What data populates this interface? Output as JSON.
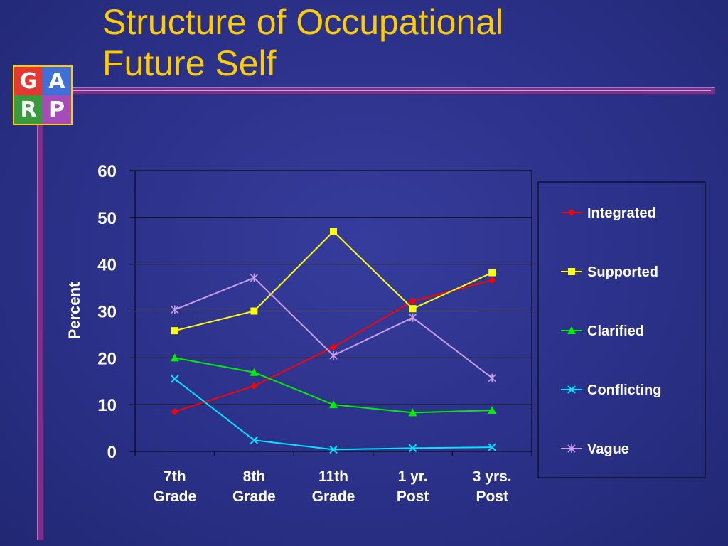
{
  "slide": {
    "title_line1": "Structure of Occupational",
    "title_line2": "Future Self"
  },
  "logo": {
    "letters": [
      "G",
      "A",
      "R",
      "P"
    ],
    "colors": [
      "#e23a33",
      "#3f6fd8",
      "#3a9a3e",
      "#a64bb8"
    ]
  },
  "chart_data": {
    "type": "line",
    "categories": [
      [
        "7th",
        "Grade"
      ],
      [
        "8th",
        "Grade"
      ],
      [
        "11th",
        "Grade"
      ],
      [
        "1 yr.",
        "Post"
      ],
      [
        "3 yrs.",
        "Post"
      ]
    ],
    "ylabel": "Percent",
    "xlabel": "",
    "ylim": [
      0,
      60
    ],
    "yticks": [
      0,
      10,
      20,
      30,
      40,
      50,
      60
    ],
    "grid": true,
    "legend_position": "right",
    "series": [
      {
        "name": "Integrated",
        "color": "#ff0000",
        "marker": "diamond",
        "values": [
          8.5,
          14,
          22.3,
          32.1,
          36.6
        ]
      },
      {
        "name": "Supported",
        "color": "#ffff00",
        "marker": "square",
        "values": [
          25.8,
          30,
          47,
          30.5,
          38.2
        ]
      },
      {
        "name": "Clarified",
        "color": "#00ee00",
        "marker": "triangle",
        "values": [
          20,
          16.9,
          10,
          8.3,
          8.8
        ]
      },
      {
        "name": "Conflicting",
        "color": "#00e5ff",
        "marker": "x",
        "values": [
          15.5,
          2.4,
          0.4,
          0.7,
          0.9
        ]
      },
      {
        "name": "Vague",
        "color": "#c89ef0",
        "marker": "star",
        "values": [
          30.3,
          37.1,
          20.5,
          28.6,
          15.7
        ]
      }
    ]
  }
}
